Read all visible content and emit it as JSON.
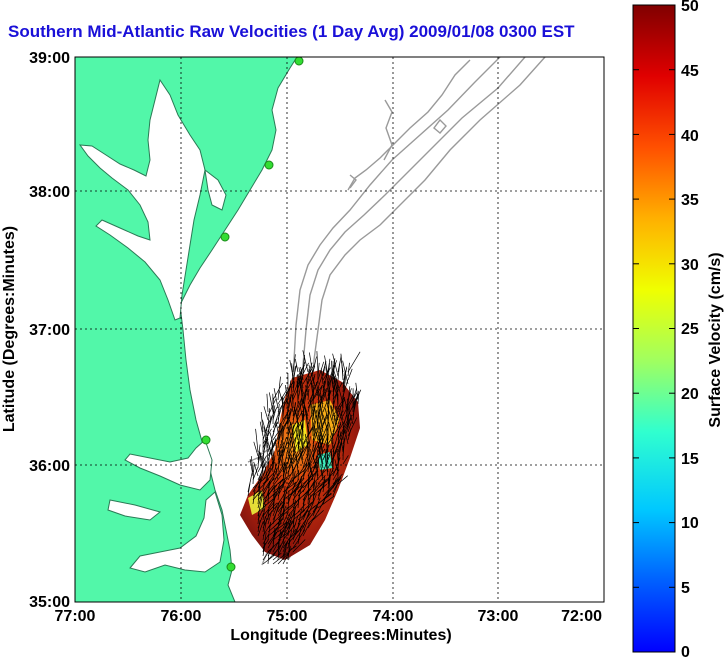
{
  "title": "Southern Mid-Atlantic Raw Velocities (1 Day Avg) 2009/01/08 0300 EST",
  "colors": {
    "land": "#52f7a9",
    "coastline": "#2a7a55",
    "bathymetry": "#9a9a9a",
    "grid": "#000000",
    "title": "#1a10d8",
    "vector": "#000000",
    "site_marker": "#33dd33"
  },
  "map": {
    "lon_range": [
      "77:00",
      "72:00"
    ],
    "lat_range": [
      "35:00",
      "39:00"
    ]
  },
  "axes": {
    "xlabel": "Longitude (Degrees:Minutes)",
    "ylabel": "Latitude (Degrees:Minutes)",
    "xticks": [
      "77:00",
      "76:00",
      "75:00",
      "74:00",
      "73:00",
      "72:00"
    ],
    "yticks": [
      "39:00",
      "38:00",
      "37:00",
      "36:00",
      "35:00"
    ]
  },
  "colorbar": {
    "label": "Surface Velocity (cm/s)",
    "ticks": [
      "50",
      "45",
      "40",
      "35",
      "30",
      "25",
      "20",
      "15",
      "10",
      "5",
      "0"
    ],
    "range": [
      0,
      50
    ],
    "colormap": "jet"
  },
  "sites": [
    {
      "lon": -74.85,
      "lat": 38.99
    },
    {
      "lon": -75.1,
      "lat": 38.2
    },
    {
      "lon": -75.55,
      "lat": 37.67
    },
    {
      "lon": -75.73,
      "lat": 36.2
    },
    {
      "lon": -75.48,
      "lat": 35.25
    }
  ]
}
